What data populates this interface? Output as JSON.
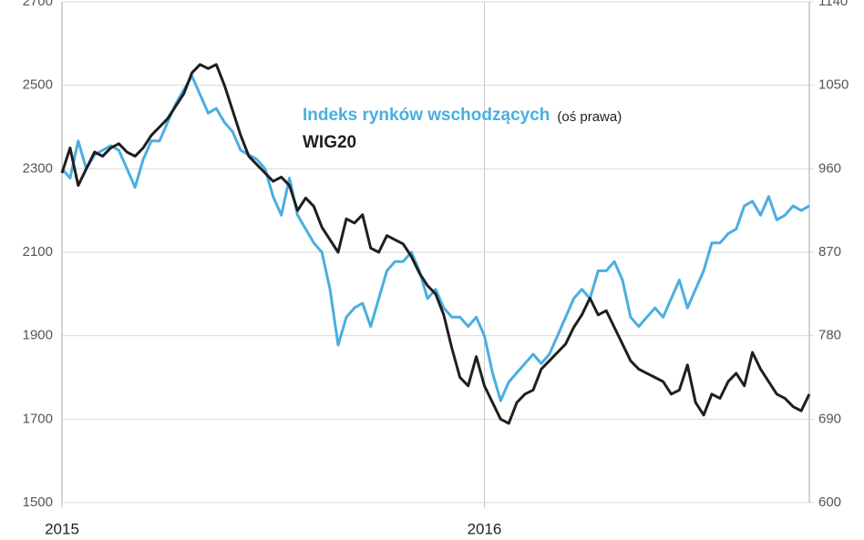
{
  "chart_data": {
    "type": "line",
    "annotation": "(oś prawa)",
    "categories": [
      "2015",
      null,
      null,
      null,
      null,
      null,
      null,
      null,
      null,
      null,
      null,
      null,
      null,
      null,
      null,
      null,
      null,
      null,
      null,
      null,
      null,
      null,
      null,
      null,
      null,
      null,
      null,
      null,
      null,
      null,
      null,
      null,
      null,
      null,
      null,
      null,
      null,
      null,
      null,
      null,
      null,
      null,
      null,
      null,
      null,
      null,
      null,
      null,
      null,
      null,
      null,
      null,
      "2016",
      null,
      null,
      null,
      null,
      null,
      null,
      null,
      null,
      null,
      null,
      null,
      null,
      null,
      null,
      null,
      null,
      null,
      null,
      null,
      null,
      null,
      null,
      null,
      null,
      null,
      null,
      null,
      null,
      null,
      null,
      null,
      null,
      null,
      null,
      null,
      null,
      null,
      null,
      null,
      null
    ],
    "series": [
      {
        "name": "Indeks rynków wschodzących",
        "color": "#4aaee0",
        "axis": "y2",
        "values": [
          960,
          950,
          990,
          960,
          975,
          980,
          985,
          980,
          960,
          940,
          970,
          990,
          990,
          1010,
          1030,
          1045,
          1060,
          1040,
          1020,
          1025,
          1010,
          1000,
          980,
          975,
          970,
          960,
          930,
          910,
          950,
          910,
          895,
          880,
          870,
          830,
          770,
          800,
          810,
          815,
          790,
          820,
          850,
          860,
          860,
          870,
          850,
          820,
          830,
          810,
          800,
          800,
          790,
          800,
          780,
          740,
          710,
          730,
          740,
          750,
          760,
          750,
          760,
          780,
          800,
          820,
          830,
          820,
          850,
          850,
          860,
          840,
          800,
          790,
          800,
          810,
          800,
          820,
          840,
          810,
          830,
          850,
          880,
          880,
          890,
          895,
          920,
          925,
          910,
          930,
          905,
          910,
          920,
          915,
          920
        ]
      },
      {
        "name": "WIG20",
        "color": "#1f1f1f",
        "values": [
          2290,
          2350,
          2260,
          2300,
          2340,
          2330,
          2350,
          2360,
          2340,
          2330,
          2350,
          2380,
          2400,
          2420,
          2450,
          2480,
          2530,
          2550,
          2540,
          2550,
          2500,
          2440,
          2380,
          2330,
          2310,
          2290,
          2270,
          2280,
          2260,
          2200,
          2230,
          2210,
          2160,
          2130,
          2100,
          2180,
          2170,
          2190,
          2110,
          2100,
          2140,
          2130,
          2120,
          2090,
          2050,
          2020,
          2000,
          1950,
          1870,
          1800,
          1780,
          1850,
          1780,
          1740,
          1700,
          1690,
          1740,
          1760,
          1770,
          1820,
          1840,
          1860,
          1880,
          1920,
          1950,
          1990,
          1950,
          1960,
          1920,
          1880,
          1840,
          1820,
          1810,
          1800,
          1790,
          1760,
          1770,
          1830,
          1740,
          1710,
          1760,
          1750,
          1790,
          1810,
          1780,
          1860,
          1820,
          1790,
          1760,
          1750,
          1730,
          1720,
          1760
        ]
      }
    ],
    "ylim": [
      1500,
      2700
    ],
    "yticks": [
      1500,
      1700,
      1900,
      2100,
      2300,
      2500,
      2700
    ],
    "y2lim": [
      600,
      1140
    ],
    "y2ticks": [
      600,
      690,
      780,
      870,
      960,
      1050,
      1140
    ],
    "grid": true
  }
}
